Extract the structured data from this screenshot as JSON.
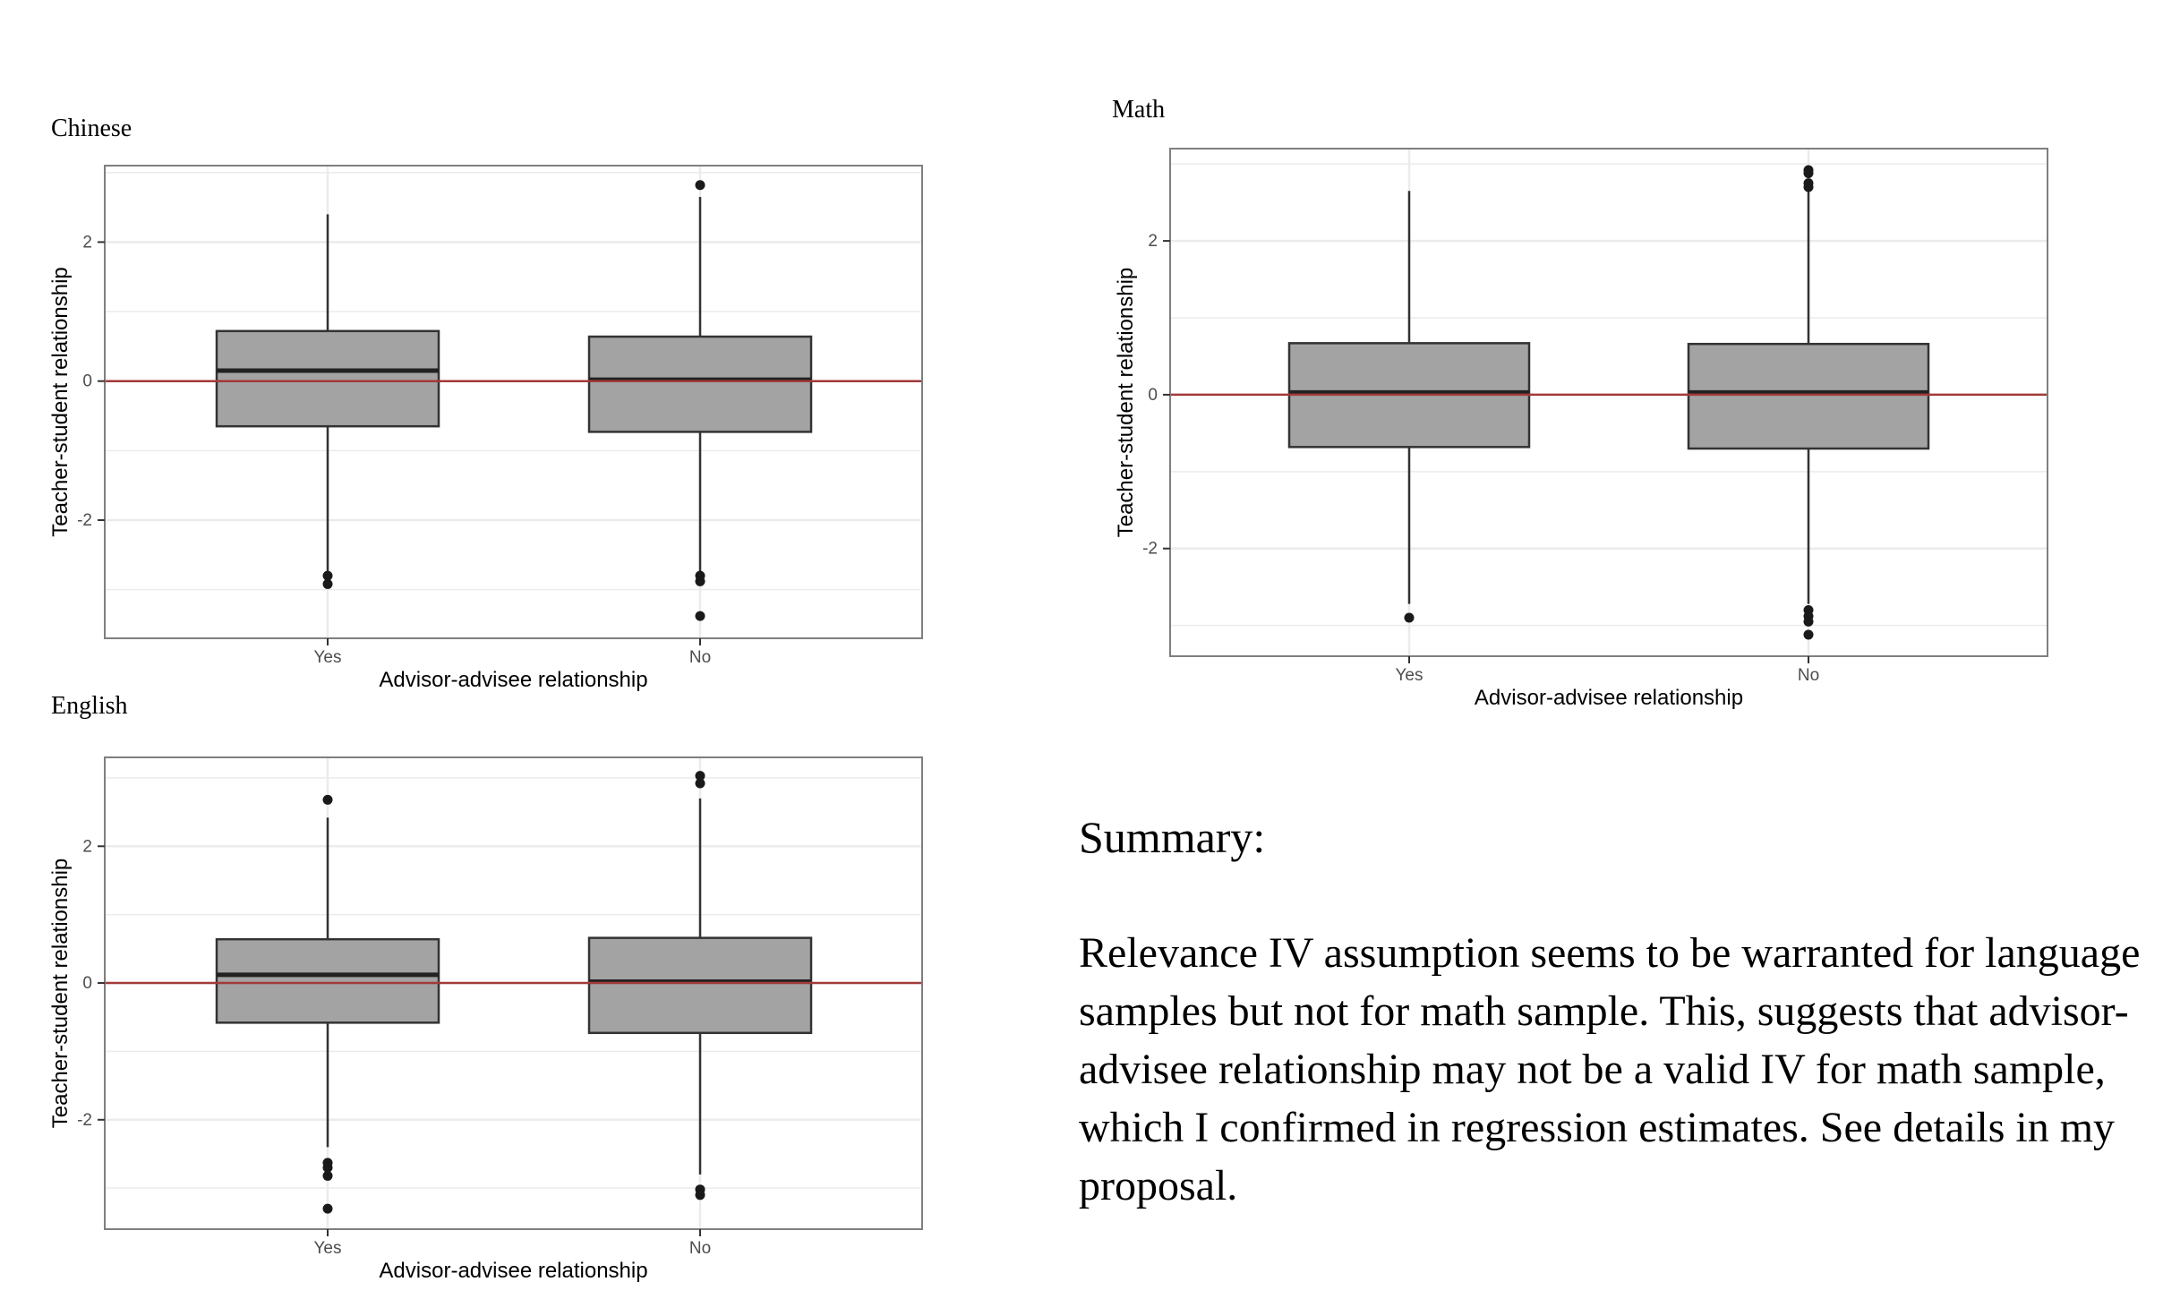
{
  "summary": {
    "heading": "Summary:",
    "text": "Relevance IV assumption seems to be warranted for language samples but not for math sample. This, suggests that advisor-advisee relationship may not be a valid IV for math sample, which I confirmed in regression estimates. See details in my proposal."
  },
  "colors": {
    "box_fill": "#a3a3a3",
    "box_stroke": "#333333",
    "reference_line": "#a33a3a",
    "grid": "#ebebeb",
    "panel_border": "#7f7f7f"
  },
  "chart_data": [
    {
      "type": "boxplot",
      "title": "Chinese",
      "xlabel": "Advisor-advisee relationship",
      "ylabel": "Teacher-student relationship",
      "categories": [
        "Yes",
        "No"
      ],
      "ylim": [
        -3.7,
        3.1
      ],
      "yticks": [
        -2,
        0,
        2
      ],
      "reference_line": 0,
      "grid": true,
      "boxes": [
        {
          "category": "Yes",
          "whisker_low": -2.75,
          "q1": -0.65,
          "median": 0.15,
          "q3": 0.72,
          "whisker_high": 2.4,
          "outliers": [
            -2.8,
            -2.92
          ]
        },
        {
          "category": "No",
          "whisker_low": -2.75,
          "q1": -0.73,
          "median": 0.02,
          "q3": 0.64,
          "whisker_high": 2.65,
          "outliers": [
            2.82,
            -2.8,
            -2.88,
            -3.38
          ]
        }
      ]
    },
    {
      "type": "boxplot",
      "title": "Math",
      "xlabel": "Advisor-advisee relationship",
      "ylabel": "Teacher-student relationship",
      "categories": [
        "Yes",
        "No"
      ],
      "ylim": [
        -3.4,
        3.2
      ],
      "yticks": [
        -2,
        0,
        2
      ],
      "reference_line": 0,
      "grid": true,
      "boxes": [
        {
          "category": "Yes",
          "whisker_low": -2.72,
          "q1": -0.68,
          "median": 0.03,
          "q3": 0.67,
          "whisker_high": 2.65,
          "outliers": [
            -2.9
          ]
        },
        {
          "category": "No",
          "whisker_low": -2.72,
          "q1": -0.7,
          "median": 0.03,
          "q3": 0.66,
          "whisker_high": 2.68,
          "outliers": [
            2.92,
            2.88,
            2.75,
            2.7,
            -2.8,
            -2.88,
            -2.95,
            -3.12
          ]
        }
      ]
    },
    {
      "type": "boxplot",
      "title": "English",
      "xlabel": "Advisor-advisee relationship",
      "ylabel": "Teacher-student relationship",
      "categories": [
        "Yes",
        "No"
      ],
      "ylim": [
        -3.6,
        3.3
      ],
      "yticks": [
        -2,
        0,
        2
      ],
      "reference_line": 0,
      "grid": true,
      "boxes": [
        {
          "category": "Yes",
          "whisker_low": -2.4,
          "q1": -0.58,
          "median": 0.12,
          "q3": 0.64,
          "whisker_high": 2.42,
          "outliers": [
            2.68,
            -2.63,
            -2.7,
            -2.82,
            -3.3
          ]
        },
        {
          "category": "No",
          "whisker_low": -2.8,
          "q1": -0.73,
          "median": 0.02,
          "q3": 0.66,
          "whisker_high": 2.7,
          "outliers": [
            3.03,
            2.92,
            -3.02,
            -3.1
          ]
        }
      ]
    }
  ]
}
